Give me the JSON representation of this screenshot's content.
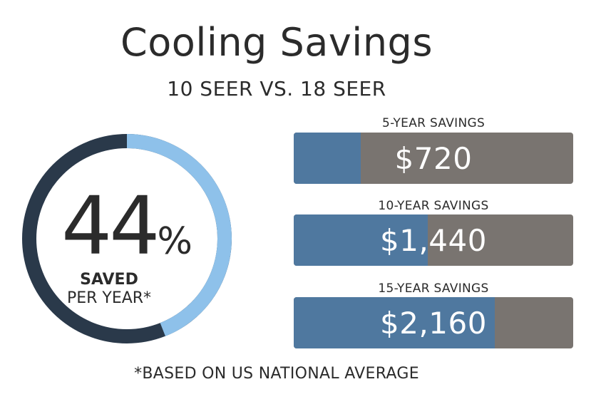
{
  "header": {
    "title": "Cooling Savings",
    "subtitle": "10 SEER VS. 18 SEER"
  },
  "donut": {
    "percent_label": "44",
    "percent_sign": "%",
    "saved_label": "SAVED",
    "per_year_label": "PER YEAR*"
  },
  "footnote": "*BASED ON US NATIONAL AVERAGE",
  "colors": {
    "donut_dark": "#2a394a",
    "donut_light": "#8ec1ea",
    "bar_fill": "#4f789f",
    "bar_track": "#797470"
  },
  "chart_data": [
    {
      "type": "pie",
      "values": [
        44,
        56
      ],
      "labels": [
        "",
        ""
      ]
    },
    {
      "type": "bar",
      "categories": [
        "5-YEAR SAVINGS",
        "10-YEAR SAVINGS",
        "15-YEAR SAVINGS"
      ],
      "values": [
        720,
        1440,
        2160
      ],
      "value_labels": [
        "$720",
        "$1,440",
        "$2,160"
      ],
      "fill_fractions": [
        0.24,
        0.48,
        0.72
      ]
    }
  ]
}
